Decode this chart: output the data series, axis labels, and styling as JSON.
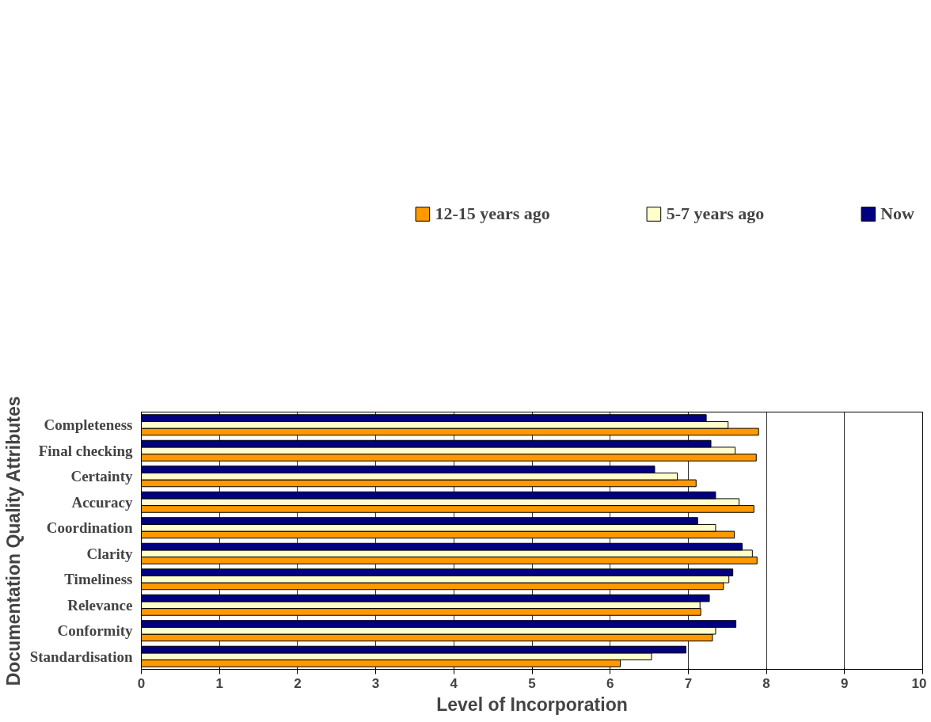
{
  "chart_data": {
    "type": "bar",
    "orientation": "horizontal",
    "xlabel": "Level of Incorporation",
    "ylabel": "Documentation Quality Attributes",
    "categories": [
      "Completeness",
      "Final checking",
      "Certainty",
      "Accuracy",
      "Coordination",
      "Clarity",
      "Timeliness",
      "Relevance",
      "Conformity",
      "Standardisation"
    ],
    "series": [
      {
        "name": "12-15 years ago",
        "color": "#ff9900",
        "values": [
          7.9,
          7.87,
          7.1,
          7.84,
          7.59,
          7.88,
          7.45,
          7.16,
          7.31,
          6.13
        ]
      },
      {
        "name": "5-7 years ago",
        "color": "#ffffcc",
        "values": [
          7.51,
          7.6,
          6.86,
          7.65,
          7.35,
          7.82,
          7.52,
          7.15,
          7.35,
          6.53
        ]
      },
      {
        "name": "Now",
        "color": "#000080",
        "values": [
          7.23,
          7.29,
          6.57,
          7.35,
          7.12,
          7.69,
          7.57,
          7.27,
          7.61,
          6.97
        ]
      }
    ],
    "xlim": [
      0,
      10
    ],
    "xticks": [
      0,
      1,
      2,
      3,
      4,
      5,
      6,
      7,
      8,
      9,
      10
    ],
    "grid": "x",
    "legend": "top"
  }
}
